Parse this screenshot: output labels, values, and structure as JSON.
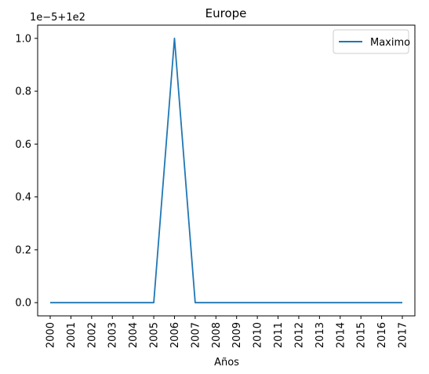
{
  "chart_data": {
    "type": "line",
    "title": "Europe",
    "xlabel": "Años",
    "ylabel": "",
    "y_offset_text": "1e−5+1e2",
    "x": [
      "2000",
      "2001",
      "2002",
      "2003",
      "2004",
      "2005",
      "2006",
      "2007",
      "2008",
      "2009",
      "2010",
      "2011",
      "2012",
      "2013",
      "2014",
      "2015",
      "2016",
      "2017"
    ],
    "y_ticks": [
      "0.0",
      "0.2",
      "0.4",
      "0.6",
      "0.8",
      "1.0"
    ],
    "ylim": [
      -0.05,
      1.05
    ],
    "y_scale_note": "values shown as (y - 100) / 1e-5",
    "series": [
      {
        "name": "Maximo",
        "color": "#1f77b4",
        "values": [
          0,
          0,
          0,
          0,
          0,
          0,
          1.0,
          0,
          0,
          0,
          0,
          0,
          0,
          0,
          0,
          0,
          0,
          0
        ]
      }
    ],
    "legend": {
      "position": "top-right"
    },
    "grid": false
  }
}
